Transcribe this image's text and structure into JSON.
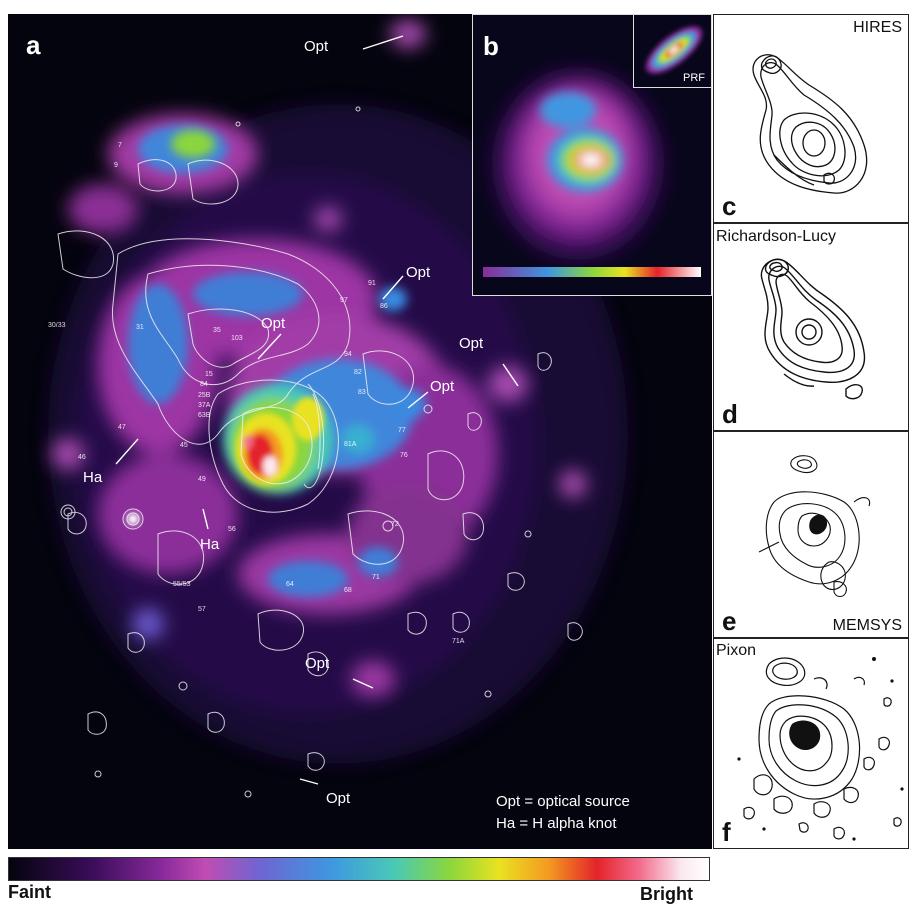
{
  "panels": {
    "a": {
      "label": "a",
      "annotations": {
        "opt_labels": [
          "Opt",
          "Opt",
          "Opt",
          "Opt",
          "Opt",
          "Opt",
          "Opt"
        ],
        "ha_labels": [
          "Ha",
          "Ha"
        ],
        "knot_numbers": [
          "7",
          "9",
          "91",
          "86",
          "97",
          "103",
          "30/33",
          "31",
          "35",
          "15",
          "25B",
          "37A",
          "63B",
          "84",
          "94",
          "83",
          "82",
          "81A",
          "77",
          "76",
          "45",
          "46",
          "47",
          "49",
          "56",
          "72",
          "55/53",
          "57",
          "64",
          "71",
          "68",
          "71A"
        ]
      },
      "legend": {
        "line1": "Opt = optical source",
        "line2": "Ha = H alpha knot"
      }
    },
    "b": {
      "label": "b",
      "inset_label": "PRF"
    },
    "c": {
      "label": "c",
      "title": "HIRES"
    },
    "d": {
      "label": "d",
      "title": "Richardson-Lucy"
    },
    "e": {
      "label": "e",
      "title": "MEMSYS"
    },
    "f": {
      "label": "f",
      "title": "Pixon"
    }
  },
  "colorbar": {
    "left_label": "Faint",
    "right_label": "Bright"
  }
}
